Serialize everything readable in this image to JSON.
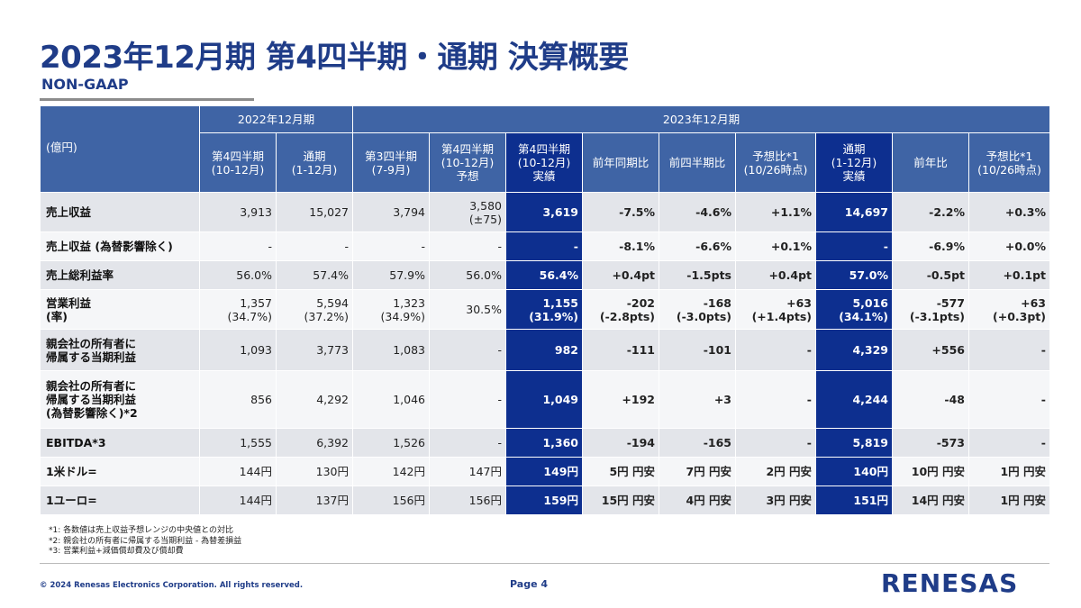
{
  "title": "2023年12月期 第4四半期・通期 決算概要",
  "subtitle": "NON-GAAP",
  "table": {
    "unit": "(億円)",
    "group_2022": "2022年12月期",
    "group_2023": "2023年12月期",
    "col_q4_2022": [
      "第4四半期",
      "(10-12月)"
    ],
    "col_fy_2022": [
      "通期",
      "(1-12月)"
    ],
    "col_q3_2023": [
      "第3四半期",
      "(7-9月)"
    ],
    "col_q4_forecast": [
      "第4四半期",
      "(10-12月)",
      "予想"
    ],
    "col_q4_actual": [
      "第4四半期",
      "(10-12月)",
      "実績"
    ],
    "col_yoy": "前年同期比",
    "col_qoq": "前四半期比",
    "col_vs_forecast": [
      "予想比*1",
      "(10/26時点)"
    ],
    "col_fy_actual": [
      "通期",
      "(1-12月)",
      "実績"
    ],
    "col_fy_yoy": "前年比",
    "col_fy_vs_forecast": [
      "予想比*1",
      "(10/26時点)"
    ],
    "rows": [
      {
        "label": [
          "売上収益"
        ],
        "c": [
          "3,913",
          "15,027",
          "3,794",
          "3,580\n(±75)",
          "3,619",
          "-7.5%",
          "-4.6%",
          "+1.1%",
          "14,697",
          "-2.2%",
          "+0.3%"
        ]
      },
      {
        "label": [
          "売上収益 (為替影響除く)"
        ],
        "c": [
          "-",
          "-",
          "-",
          "-",
          "-",
          "-8.1%",
          "-6.6%",
          "+0.1%",
          "-",
          "-6.9%",
          "+0.0%"
        ]
      },
      {
        "label": [
          "売上総利益率"
        ],
        "c": [
          "56.0%",
          "57.4%",
          "57.9%",
          "56.0%",
          "56.4%",
          "+0.4pt",
          "-1.5pts",
          "+0.4pt",
          "57.0%",
          "-0.5pt",
          "+0.1pt"
        ]
      },
      {
        "label": [
          "営業利益",
          "(率)"
        ],
        "c": [
          "1,357\n(34.7%)",
          "5,594\n(37.2%)",
          "1,323\n(34.9%)",
          "30.5%",
          "1,155\n(31.9%)",
          "-202\n(-2.8pts)",
          "-168\n(-3.0pts)",
          "+63\n(+1.4pts)",
          "5,016\n(34.1%)",
          "-577\n(-3.1pts)",
          "+63\n(+0.3pt)"
        ]
      },
      {
        "label": [
          "親会社の所有者に",
          "帰属する当期利益"
        ],
        "c": [
          "1,093",
          "3,773",
          "1,083",
          "-",
          "982",
          "-111",
          "-101",
          "-",
          "4,329",
          "+556",
          "-"
        ]
      },
      {
        "label": [
          "親会社の所有者に",
          "帰属する当期利益",
          "(為替影響除く)*2"
        ],
        "c": [
          "856",
          "4,292",
          "1,046",
          "-",
          "1,049",
          "+192",
          "+3",
          "-",
          "4,244",
          "-48",
          "-"
        ]
      },
      {
        "label": [
          "EBITDA*3"
        ],
        "c": [
          "1,555",
          "6,392",
          "1,526",
          "-",
          "1,360",
          "-194",
          "-165",
          "-",
          "5,819",
          "-573",
          "-"
        ]
      },
      {
        "label": [
          "1米ドル="
        ],
        "c": [
          "144円",
          "130円",
          "142円",
          "147円",
          "149円",
          "5円 円安",
          "7円 円安",
          "2円 円安",
          "140円",
          "10円 円安",
          "1円 円安"
        ]
      },
      {
        "label": [
          "1ユーロ="
        ],
        "c": [
          "144円",
          "137円",
          "156円",
          "156円",
          "159円",
          "15円 円安",
          "4円 円安",
          "3円 円安",
          "151円",
          "14円 円安",
          "1円 円安"
        ]
      }
    ]
  },
  "notes": [
    "*1: 各数値は売上収益予想レンジの中央値との対比",
    "*2: 親会社の所有者に帰属する当期利益 - 為替差損益",
    "*3: 営業利益+減価償却費及び償却費"
  ],
  "footer": {
    "copyright": "© 2024 Renesas Electronics Corporation. All rights reserved.",
    "page": "Page 4",
    "logo": "RENESAS"
  }
}
